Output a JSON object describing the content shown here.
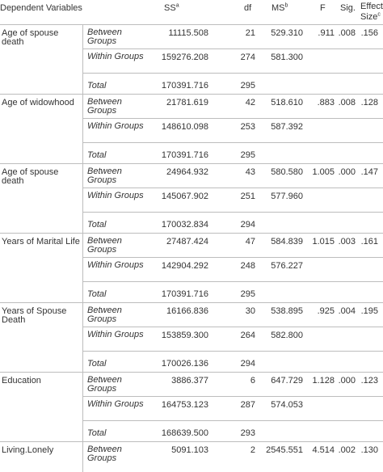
{
  "header": {
    "dependent_variables": "Dependent Variables",
    "ss": "SS",
    "ss_sup": "a",
    "df": "df",
    "ms": "MS",
    "ms_sup": "b",
    "f": "F",
    "sig": "Sig.",
    "effect_line1": "Effect",
    "effect_line2": "Size",
    "effect_sup": "c"
  },
  "groups": [
    {
      "variable": "Age of spouse death",
      "rows": [
        {
          "source": "Between Groups",
          "ss": "11115.508",
          "df": "21",
          "ms": "529.310",
          "f": ".911",
          "sig": ".008",
          "effect": ".156"
        },
        {
          "source": "Within Groups",
          "ss": "159276.208",
          "df": "274",
          "ms": "581.300",
          "f": "",
          "sig": "",
          "effect": ""
        },
        {
          "source": "Total",
          "ss": "170391.716",
          "df": "295",
          "ms": "",
          "f": "",
          "sig": "",
          "effect": ""
        }
      ]
    },
    {
      "variable": "Age of widowhood",
      "rows": [
        {
          "source": "Between Groups",
          "ss": "21781.619",
          "df": "42",
          "ms": "518.610",
          "f": ".883",
          "sig": ".008",
          "effect": ".128"
        },
        {
          "source": "Within Groups",
          "ss": "148610.098",
          "df": "253",
          "ms": "587.392",
          "f": "",
          "sig": "",
          "effect": ""
        },
        {
          "source": "Total",
          "ss": "170391.716",
          "df": "295",
          "ms": "",
          "f": "",
          "sig": "",
          "effect": ""
        }
      ]
    },
    {
      "variable": "Age of spouse death",
      "rows": [
        {
          "source": "Between Groups",
          "ss": "24964.932",
          "df": "43",
          "ms": "580.580",
          "f": "1.005",
          "sig": ".000",
          "effect": ".147"
        },
        {
          "source": "Within Groups",
          "ss": "145067.902",
          "df": "251",
          "ms": "577.960",
          "f": "",
          "sig": "",
          "effect": ""
        },
        {
          "source": "Total",
          "ss": "170032.834",
          "df": "294",
          "ms": "",
          "f": "",
          "sig": "",
          "effect": ""
        }
      ]
    },
    {
      "variable": "Years of Marital Life",
      "rows": [
        {
          "source": "Between Groups",
          "ss": "27487.424",
          "df": "47",
          "ms": "584.839",
          "f": "1.015",
          "sig": ".003",
          "effect": ".161"
        },
        {
          "source": "Within Groups",
          "ss": "142904.292",
          "df": "248",
          "ms": "576.227",
          "f": "",
          "sig": "",
          "effect": ""
        },
        {
          "source": "Total",
          "ss": "170391.716",
          "df": "295",
          "ms": "",
          "f": "",
          "sig": "",
          "effect": ""
        }
      ]
    },
    {
      "variable": "Years of Spouse Death",
      "rows": [
        {
          "source": "Between Groups",
          "ss": "16166.836",
          "df": "30",
          "ms": "538.895",
          "f": ".925",
          "sig": ".004",
          "effect": ".195"
        },
        {
          "source": "Within Groups",
          "ss": "153859.300",
          "df": "264",
          "ms": "582.800",
          "f": "",
          "sig": "",
          "effect": ""
        },
        {
          "source": "Total",
          "ss": "170026.136",
          "df": "294",
          "ms": "",
          "f": "",
          "sig": "",
          "effect": ""
        }
      ]
    },
    {
      "variable": "Education",
      "rows": [
        {
          "source": "Between Groups",
          "ss": "3886.377",
          "df": "6",
          "ms": "647.729",
          "f": "1.128",
          "sig": ".000",
          "effect": ".123"
        },
        {
          "source": "Within Groups",
          "ss": "164753.123",
          "df": "287",
          "ms": "574.053",
          "f": "",
          "sig": "",
          "effect": ""
        },
        {
          "source": "Total",
          "ss": "168639.500",
          "df": "293",
          "ms": "",
          "f": "",
          "sig": "",
          "effect": ""
        }
      ]
    },
    {
      "variable": "Living.Lonely",
      "rows": [
        {
          "source": "Between Groups",
          "ss": "5091.103",
          "df": "2",
          "ms": "2545.551",
          "f": "4.514",
          "sig": ".002",
          "effect": ".130"
        }
      ]
    }
  ]
}
